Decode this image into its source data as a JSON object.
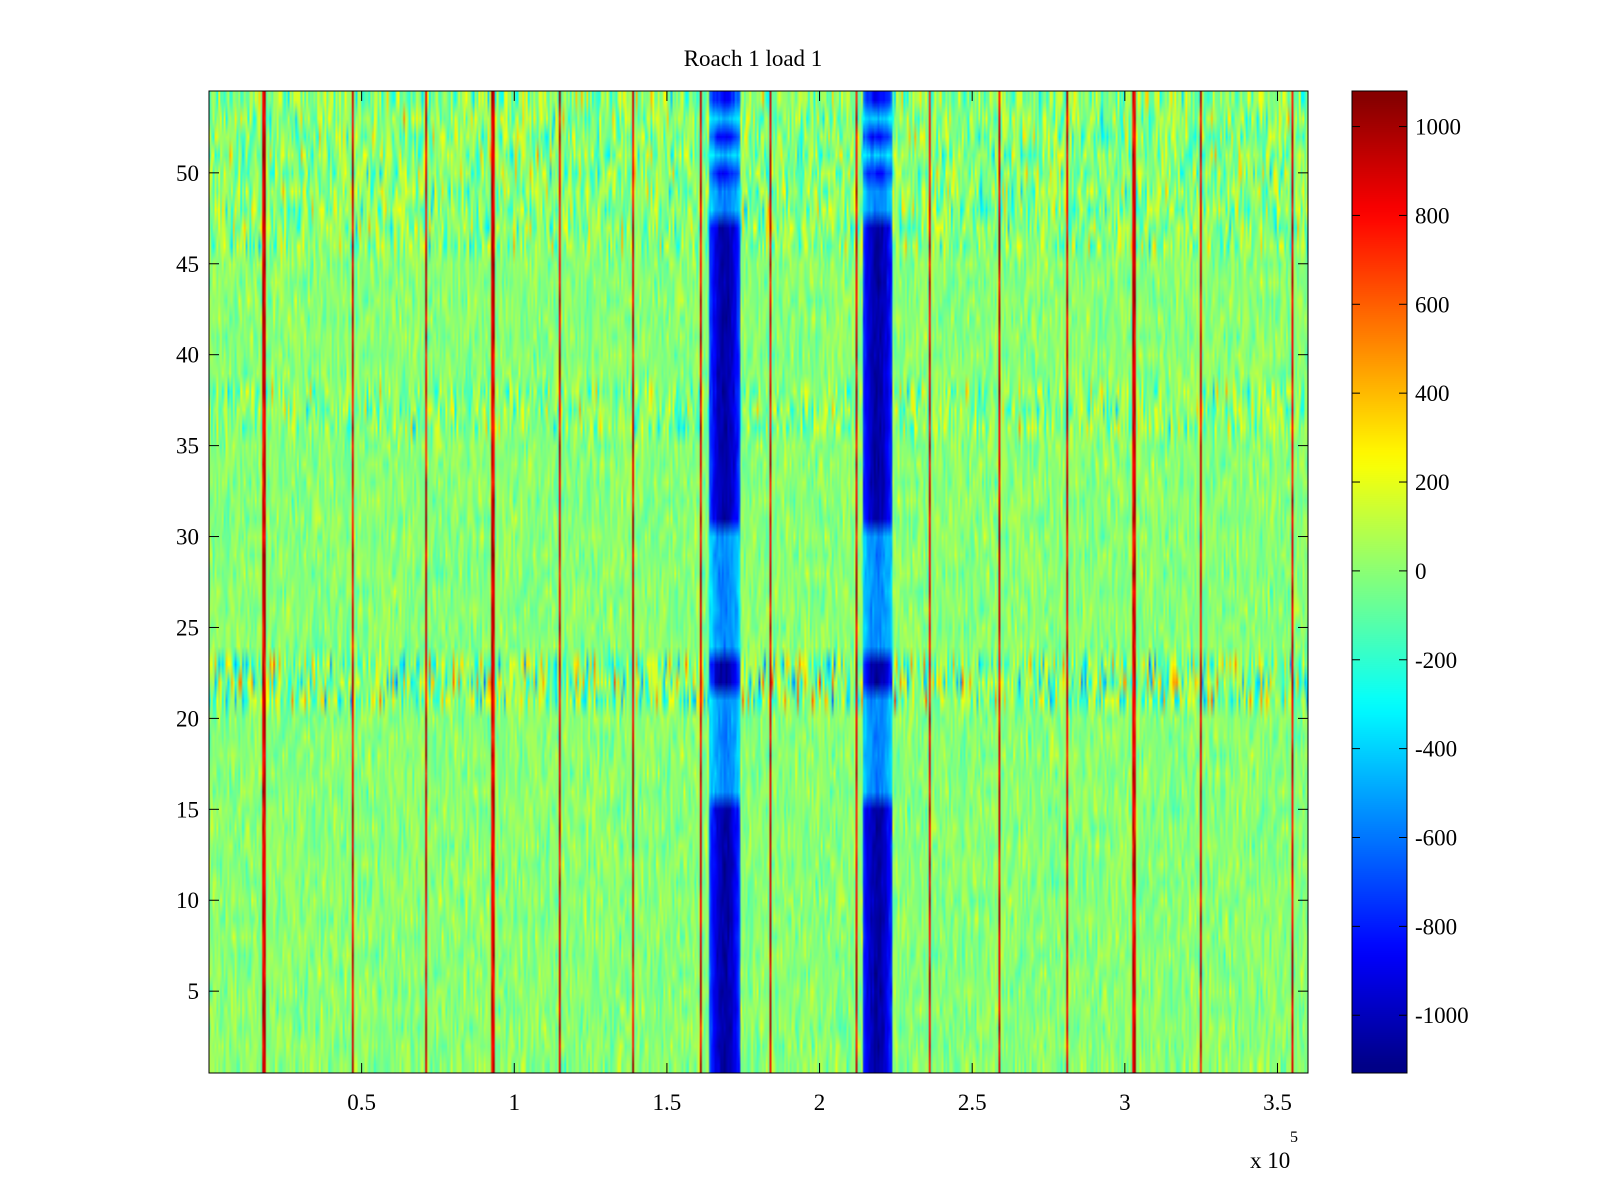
{
  "chart_data": {
    "type": "heatmap",
    "title": "Roach 1 load 1",
    "xlabel": "",
    "ylabel": "",
    "x_exponent_label": "x 10",
    "x_exponent_power": "5",
    "xlim": [
      0,
      360000
    ],
    "ylim": [
      0.5,
      54.5
    ],
    "x_ticks": [
      {
        "value": 0.5,
        "label": "0.5"
      },
      {
        "value": 1,
        "label": "1"
      },
      {
        "value": 1.5,
        "label": "1.5"
      },
      {
        "value": 2,
        "label": "2"
      },
      {
        "value": 2.5,
        "label": "2.5"
      },
      {
        "value": 3,
        "label": "3"
      },
      {
        "value": 3.5,
        "label": "3.5"
      }
    ],
    "y_ticks": [
      {
        "value": 5,
        "label": "5"
      },
      {
        "value": 10,
        "label": "10"
      },
      {
        "value": 15,
        "label": "15"
      },
      {
        "value": 20,
        "label": "20"
      },
      {
        "value": 25,
        "label": "25"
      },
      {
        "value": 30,
        "label": "30"
      },
      {
        "value": 35,
        "label": "35"
      },
      {
        "value": 40,
        "label": "40"
      },
      {
        "value": 45,
        "label": "45"
      },
      {
        "value": 50,
        "label": "50"
      }
    ],
    "rows": 54,
    "colorbar": {
      "colormap": "jet",
      "range": [
        -1130,
        1080
      ],
      "ticks": [
        {
          "value": 1000,
          "label": "1000"
        },
        {
          "value": 800,
          "label": "800"
        },
        {
          "value": 600,
          "label": "600"
        },
        {
          "value": 400,
          "label": "400"
        },
        {
          "value": 200,
          "label": "200"
        },
        {
          "value": 0,
          "label": "0"
        },
        {
          "value": -200,
          "label": "-200"
        },
        {
          "value": -400,
          "label": "-400"
        },
        {
          "value": -600,
          "label": "-600"
        },
        {
          "value": -800,
          "label": "-800"
        },
        {
          "value": -1000,
          "label": "-1000"
        }
      ]
    },
    "background_level": 0,
    "dark_bands": [
      {
        "x_start": 164000,
        "x_end": 174000,
        "min_value": -1050
      },
      {
        "x_start": 214000,
        "x_end": 224000,
        "min_value": -1050
      }
    ],
    "bright_column_x": [
      18000,
      47000,
      71000,
      93000,
      115000,
      139000,
      161000,
      184000,
      212000,
      236000,
      259000,
      281000,
      303000,
      325000,
      355000
    ],
    "high_variance_rows": [
      {
        "row_start": 21,
        "row_end": 23,
        "peak_value": 900
      },
      {
        "row_start": 36,
        "row_end": 38,
        "peak_value": 600
      },
      {
        "row_start": 46,
        "row_end": 54,
        "peak_value": 600
      }
    ],
    "grid": false
  }
}
